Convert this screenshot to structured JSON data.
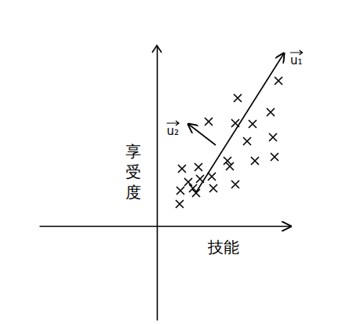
{
  "chart_data": {
    "type": "scatter",
    "x_label": "技能",
    "y_label": "享受度",
    "x": [
      2.9,
      3.2,
      5.3,
      4.0,
      5.0,
      5.5,
      6.6,
      7.0,
      7.2,
      9.0,
      9.3,
      10.0,
      10.3,
      10.0,
      12.2,
      11.5,
      14.5,
      14.8,
      12.5,
      15.0,
      15.5,
      4.6,
      3.0
    ],
    "values": [
      2.8,
      7.3,
      7.5,
      5.6,
      4.2,
      6.0,
      13.3,
      6.3,
      4.8,
      8.3,
      7.6,
      5.3,
      16.3,
      13.1,
      13.0,
      10.8,
      14.5,
      11.3,
      8.3,
      8.8,
      18.5,
      4.8,
      4.5
    ],
    "marker": "x",
    "color": "#000000",
    "xlim": [
      -15,
      17
    ],
    "ylim": [
      -12,
      23
    ],
    "xticks": [],
    "yticks": [],
    "tick_labels": false,
    "vectors": [
      {
        "label": "u₁",
        "from": [
          5.0,
          4.3
        ],
        "to": [
          16.2,
          22.0
        ]
      },
      {
        "label": "u₂",
        "from": [
          7.5,
          10.3
        ],
        "to": [
          4.0,
          13.0
        ]
      }
    ]
  }
}
